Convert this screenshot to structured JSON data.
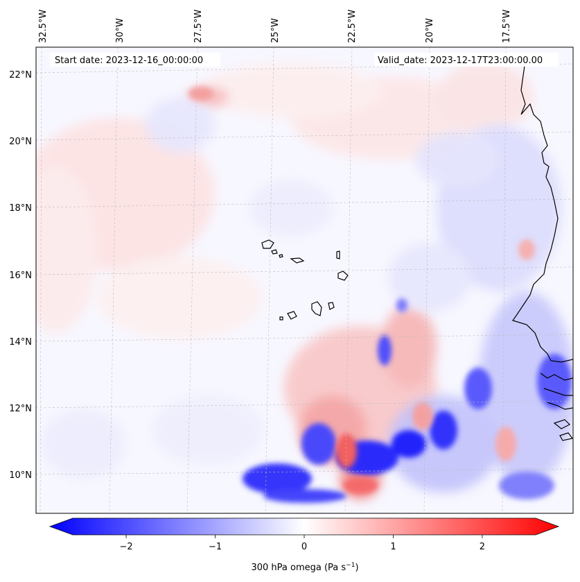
{
  "map": {
    "start_date_text": "Start date: 2023-12-16_00:00:00",
    "valid_date_text": "Valid_date: 2023-12-17T23:00:00.00",
    "lon_labels": [
      "32.5°W",
      "30°W",
      "27.5°W",
      "25°W",
      "22.5°W",
      "20°W",
      "17.5°W"
    ],
    "lat_labels": [
      "22°N",
      "20°N",
      "18°N",
      "16°N",
      "14°N",
      "12°N",
      "10°N"
    ],
    "gridlines": true,
    "field": "300 hPa omega",
    "units": "Pa s⁻¹"
  },
  "colorbar": {
    "ticks": [
      "−2",
      "−1",
      "0",
      "1",
      "2"
    ],
    "tick_values": [
      -2,
      -1,
      0,
      1,
      2
    ],
    "range": [
      -2.6,
      2.6
    ],
    "extend": "both",
    "label_main": "300 hPa omega (Pa s",
    "label_sup": "−1",
    "label_end": ")",
    "colors": {
      "negative": "#0000ff",
      "zero": "#ffffff",
      "positive": "#ff0000"
    }
  }
}
